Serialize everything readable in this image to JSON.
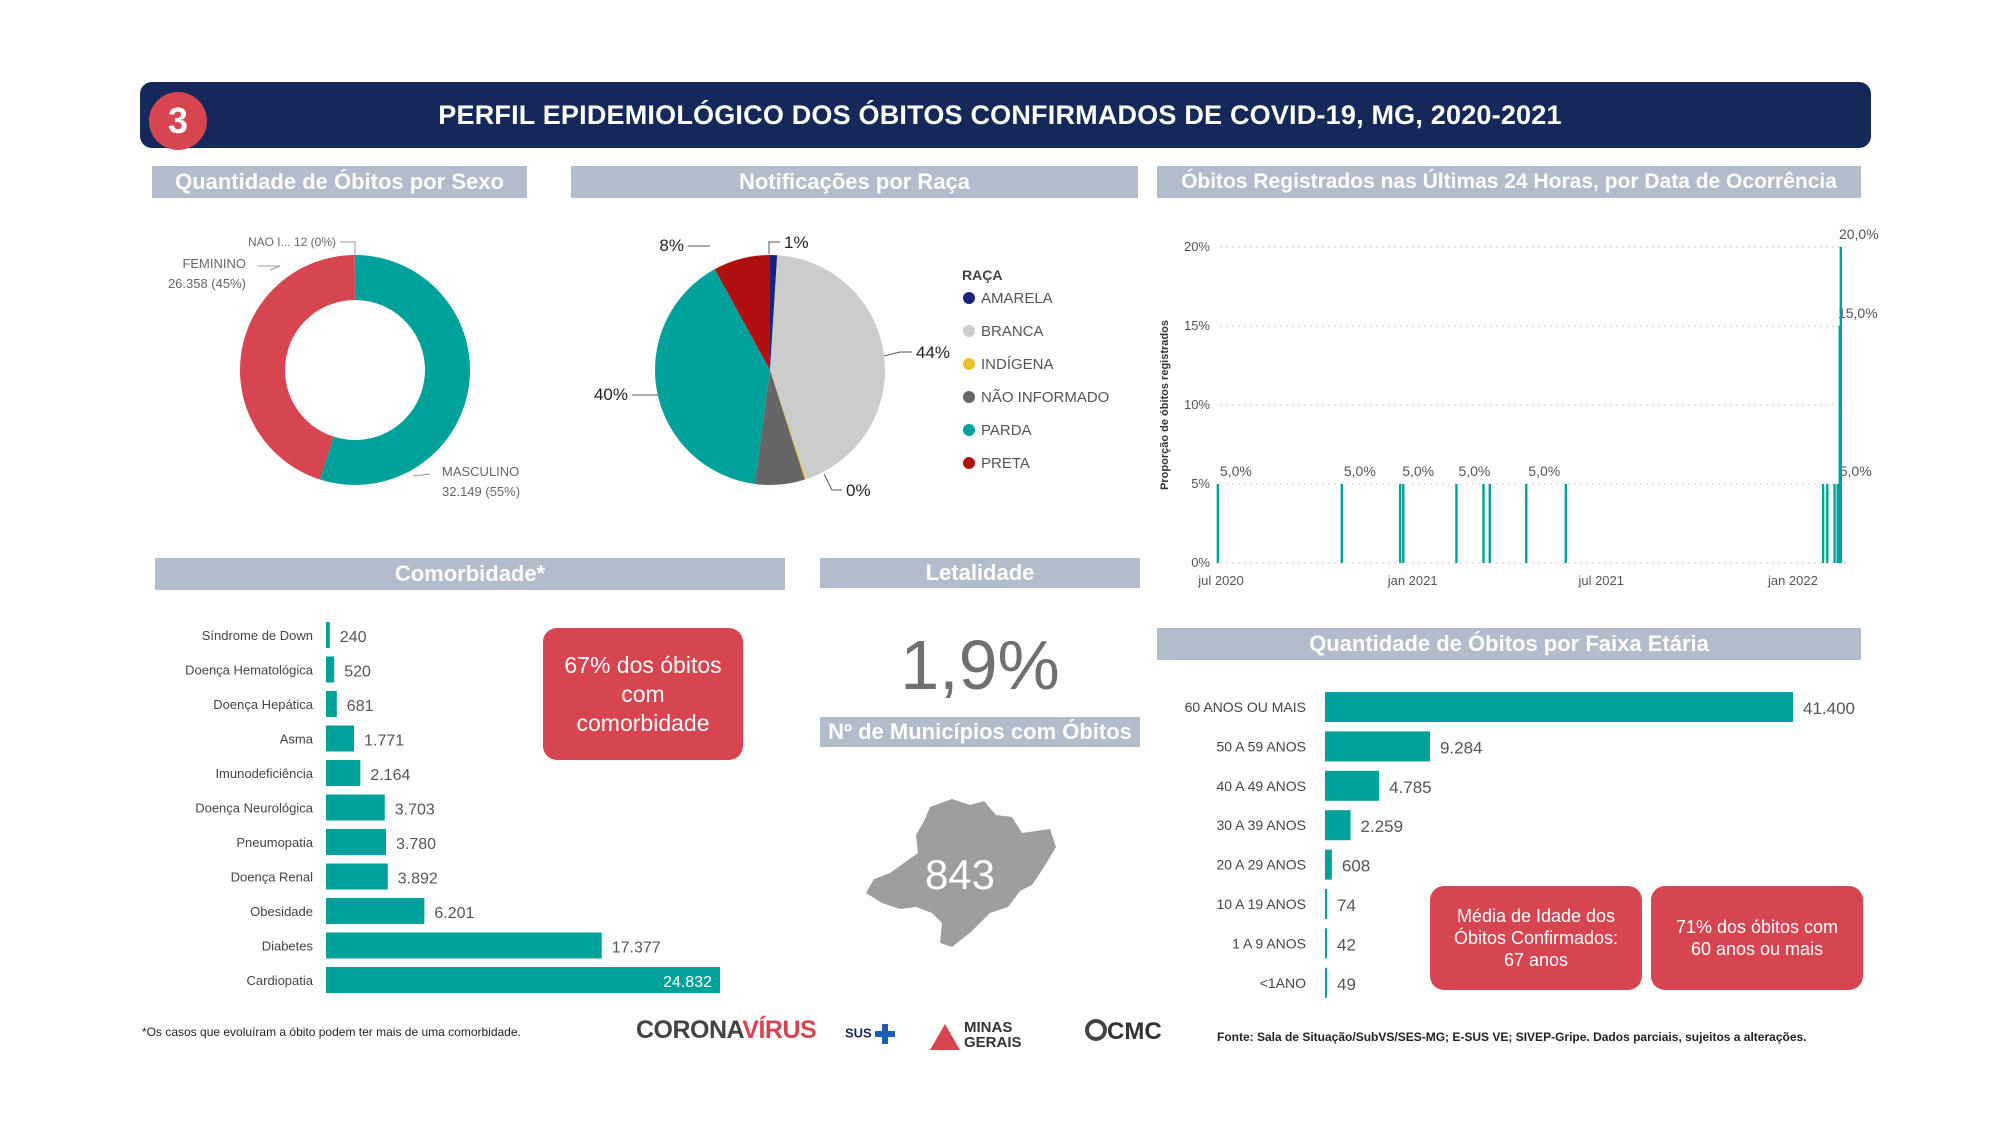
{
  "header": {
    "number": "3",
    "title": "PERFIL EPIDEMIOLÓGICO DOS ÓBITOS CONFIRMADOS DE COVID-19, MG, 2020-2021"
  },
  "sections": {
    "sexo": "Quantidade de Óbitos por Sexo",
    "raca": "Notificações por Raça",
    "ultimas24": "Óbitos Registrados nas Últimas 24 Horas, por Data de Ocorrência",
    "comorbidade": "Comorbidade*",
    "letalidade": "Letalidade",
    "municipios": "Nº de Municípios com Óbitos",
    "faixa": "Quantidade de Óbitos por Faixa Etária"
  },
  "chart_data": [
    {
      "type": "pie",
      "title": "Quantidade de Óbitos por Sexo",
      "slices": [
        {
          "label": "MASCULINO",
          "value": 32149,
          "value_label": "32.149 (55%)",
          "color": "#00a19a"
        },
        {
          "label": "FEMININO",
          "value": 26358,
          "value_label": "26.358 (45%)",
          "color": "#d64550"
        },
        {
          "label": "NAO I...",
          "value": 12,
          "value_label": "12 (0%)",
          "color": "#999999"
        }
      ]
    },
    {
      "type": "pie",
      "title": "Notificações por Raça",
      "legend_title": "RAÇA",
      "slices": [
        {
          "label": "AMARELA",
          "value": 1,
          "value_label": "1%",
          "color": "#1a237e"
        },
        {
          "label": "BRANCA",
          "value": 44,
          "value_label": "44%",
          "color": "#cccccc"
        },
        {
          "label": "INDÍGENA",
          "value": 0.2,
          "value_label": "0%",
          "color": "#e8c02c"
        },
        {
          "label": "NÃO INFORMADO",
          "value": 7,
          "value_label": "",
          "color": "#666666"
        },
        {
          "label": "PARDA",
          "value": 40,
          "value_label": "40%",
          "color": "#00a19a"
        },
        {
          "label": "PRETA",
          "value": 8,
          "value_label": "8%",
          "color": "#b01010"
        }
      ]
    },
    {
      "type": "bar",
      "title": "Óbitos Registrados nas Últimas 24 Horas, por Data de Ocorrência",
      "ylabel": "Proporção de óbitos registrados",
      "ylim": [
        0,
        20
      ],
      "y_ticks": [
        "0%",
        "5%",
        "10%",
        "15%",
        "20%"
      ],
      "x_ticks": [
        "jul 2020",
        "jan 2021",
        "jul 2021",
        "jan 2022"
      ],
      "x_tick_dates": [
        "2020-07-01",
        "2021-01-01",
        "2021-07-01",
        "2022-01-01"
      ],
      "x_range": [
        "2020-07-01",
        "2022-02-20"
      ],
      "bars": [
        {
          "date": "2020-06-28",
          "value": 5,
          "label": "5,0%"
        },
        {
          "date": "2020-10-25",
          "value": 5,
          "label": "5,0%"
        },
        {
          "date": "2020-12-20",
          "value": 5,
          "label": "5,0%"
        },
        {
          "date": "2020-12-23",
          "value": 5,
          "label": ""
        },
        {
          "date": "2021-02-12",
          "value": 5,
          "label": "5,0%"
        },
        {
          "date": "2021-03-10",
          "value": 5,
          "label": ""
        },
        {
          "date": "2021-03-16",
          "value": 5,
          "label": ""
        },
        {
          "date": "2021-04-20",
          "value": 5,
          "label": "5,0%"
        },
        {
          "date": "2021-05-28",
          "value": 5,
          "label": ""
        },
        {
          "date": "2022-01-30",
          "value": 5,
          "label": ""
        },
        {
          "date": "2022-02-03",
          "value": 5,
          "label": ""
        },
        {
          "date": "2022-02-10",
          "value": 5,
          "label": ""
        },
        {
          "date": "2022-02-13",
          "value": 5,
          "label": "5,0%"
        },
        {
          "date": "2022-02-15",
          "value": 15,
          "label": "15,0%"
        },
        {
          "date": "2022-02-16",
          "value": 20,
          "label": "20,0%"
        }
      ]
    },
    {
      "type": "bar",
      "orientation": "horizontal",
      "title": "Comorbidade*",
      "categories": [
        "Síndrome de Down",
        "Doença Hematológica",
        "Doença Hepática",
        "Asma",
        "Imunodeficiência",
        "Doença Neurológica",
        "Pneumopatia",
        "Doença Renal",
        "Obesidade",
        "Diabetes",
        "Cardiopatia"
      ],
      "values": [
        240,
        520,
        681,
        1771,
        2164,
        3703,
        3780,
        3892,
        6201,
        17377,
        24832
      ],
      "value_labels": [
        "240",
        "520",
        "681",
        "1.771",
        "2.164",
        "3.703",
        "3.780",
        "3.892",
        "6.201",
        "17.377",
        "24.832"
      ]
    },
    {
      "type": "bar",
      "orientation": "horizontal",
      "title": "Quantidade de Óbitos por Faixa Etária",
      "categories": [
        "60 ANOS OU MAIS",
        "50 A 59 ANOS",
        "40 A 49 ANOS",
        "30 A 39 ANOS",
        "20 A 29 ANOS",
        "10 A 19 ANOS",
        "1 A 9 ANOS",
        "<1ANO"
      ],
      "values": [
        41400,
        9284,
        4785,
        2259,
        608,
        74,
        42,
        49
      ],
      "value_labels": [
        "41.400",
        "9.284",
        "4.785",
        "2.259",
        "608",
        "74",
        "42",
        "49"
      ]
    }
  ],
  "highlights": {
    "comorbidade_pct": "67% dos óbitos com comorbidade",
    "letalidade": "1,9%",
    "municipios": "843",
    "media_idade": "Média de Idade dos Óbitos Confirmados: 67 anos",
    "idosos_pct": "71% dos óbitos com 60 anos ou mais"
  },
  "footer": {
    "note": "*Os casos que evoluíram a óbito podem ter mais de uma comorbidade.",
    "source": "Fonte: Sala de Situação/SubVS/SES-MG; E-SUS VE; SIVEP-Gripe. Dados parciais, sujeitos a alterações.",
    "logos": {
      "corona": "CORONA",
      "virus": "VÍRUS",
      "sus": "SUS",
      "minas": "MINAS",
      "gerais": "GERAIS",
      "cmc": "CMC"
    }
  },
  "colors": {
    "teal": "#00a19a",
    "red": "#d64550",
    "navy": "#14285a",
    "section": "#b3bccb"
  }
}
